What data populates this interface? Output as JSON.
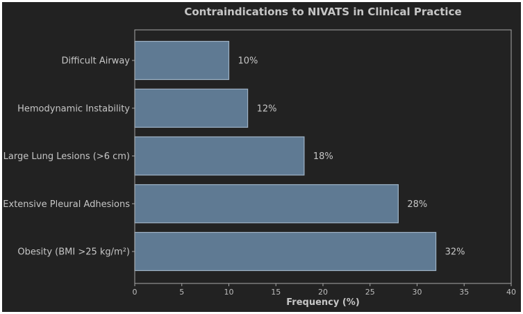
{
  "chart_data": {
    "type": "bar",
    "orientation": "horizontal",
    "title": "Contraindications to NIVATS in Clinical Practice",
    "xlabel": "Frequency (%)",
    "ylabel": "",
    "xlim": [
      0,
      40
    ],
    "xticks": [
      "0",
      "5",
      "10",
      "15",
      "20",
      "25",
      "30",
      "35",
      "40"
    ],
    "categories": [
      "Difficult Airway",
      "Hemodynamic Instability",
      "Large Lung Lesions (>6 cm)",
      "Extensive Pleural Adhesions",
      "Obesity (BMI >25 kg/m²)"
    ],
    "values": [
      10,
      12,
      18,
      28,
      32
    ],
    "value_labels": [
      "10%",
      "12%",
      "18%",
      "28%",
      "32%"
    ],
    "grid": false,
    "legend": "none"
  },
  "colors": {
    "background": "#222222",
    "bar_fill": "#5f7a93",
    "bar_edge": "#9fb3c6",
    "axis": "#a8a8a8",
    "text": "#c6c6c6"
  }
}
